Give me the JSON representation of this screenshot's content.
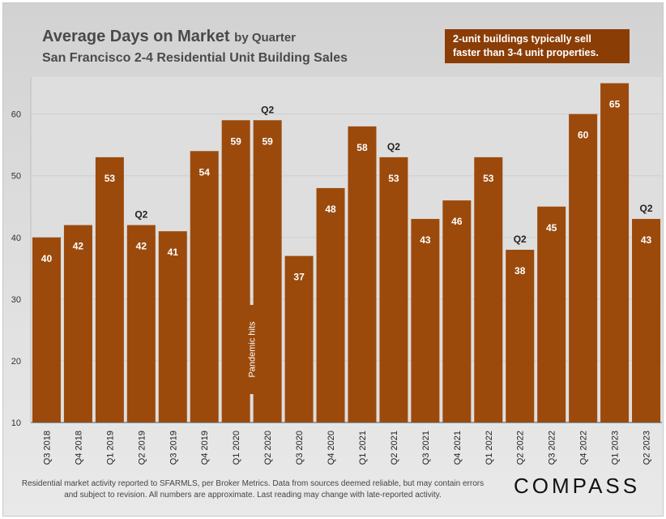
{
  "chart_data": {
    "type": "bar",
    "title_main": "Average Days on Market",
    "title_suffix": "by Quarter",
    "subtitle": "San Francisco 2-4 Residential Unit Building Sales",
    "categories": [
      "Q3 2018",
      "Q4 2018",
      "Q1 2019",
      "Q2 2019",
      "Q3 2019",
      "Q4 2019",
      "Q1 2020",
      "Q2 2020",
      "Q3 2020",
      "Q4 2020",
      "Q1 2021",
      "Q2 2021",
      "Q3 2021",
      "Q4 2021",
      "Q1 2022",
      "Q2 2022",
      "Q3 2022",
      "Q4 2022",
      "Q1 2023",
      "Q2 2023"
    ],
    "values": [
      40,
      42,
      53,
      42,
      41,
      54,
      59,
      59,
      37,
      48,
      58,
      53,
      43,
      46,
      53,
      38,
      45,
      60,
      65,
      43
    ],
    "ylim": [
      10,
      66
    ],
    "yticks": [
      10,
      20,
      30,
      40,
      50,
      60
    ],
    "bar_color": "#9b4a0c",
    "annotations": [
      {
        "category_index": 3,
        "text": "Q2"
      },
      {
        "category_index": 7,
        "text": "Q2"
      },
      {
        "category_index": 11,
        "text": "Q2"
      },
      {
        "category_index": 15,
        "text": "Q2"
      },
      {
        "category_index": 19,
        "text": "Q2"
      }
    ],
    "marker": {
      "between": [
        6,
        7
      ],
      "text": "Pandemic hits"
    },
    "note": "2-unit buildings typically sell faster than 3-4 unit properties."
  },
  "footer": "Residential market activity reported to SFARMLS, per Broker Metrics. Data from sources deemed reliable, but may contain errors and subject to revision. All numbers are approximate. Last reading may change with late-reported activity.",
  "brand": "COMPASS"
}
